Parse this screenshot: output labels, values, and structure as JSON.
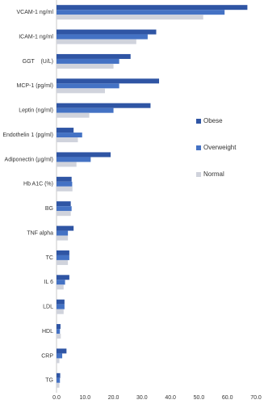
{
  "chart_data": {
    "type": "bar",
    "orientation": "horizontal",
    "categories": [
      "VCAM-1 ng/ml",
      "ICAM-1 ng/ml",
      "GGT    (U/L)",
      "MCP-1 (pg/ml)",
      "Leptin (ng/ml)",
      "Endothelin 1 (pg/ml)",
      "Adiponectin (µg/ml)",
      "Hb A1C (%)",
      "BG",
      "TNF alpha",
      "TC",
      "IL 6",
      "LDL",
      "HDL",
      "CRP",
      "TG"
    ],
    "series": [
      {
        "name": "Obese",
        "color": "#2f55a4",
        "values": [
          67,
          35,
          26,
          36,
          33,
          6,
          19,
          5.3,
          5,
          6,
          4.5,
          4.5,
          2.8,
          1.4,
          3.5,
          1.3
        ]
      },
      {
        "name": "Overweight",
        "color": "#4472c4",
        "values": [
          59,
          32,
          22,
          22,
          20,
          9,
          12,
          5.5,
          5.3,
          4,
          4.5,
          3,
          2.8,
          1.2,
          2,
          1.2
        ]
      },
      {
        "name": "Normal",
        "color": "#d0d3dc",
        "values": [
          51.5,
          28,
          20,
          17,
          11.5,
          7.5,
          7,
          5.6,
          5,
          4,
          4,
          2.5,
          2.5,
          1.5,
          1,
          1
        ]
      }
    ],
    "xlim": [
      0,
      70
    ],
    "xticks": [
      {
        "value": 0,
        "label": "0.0"
      },
      {
        "value": 10,
        "label": "10.0"
      },
      {
        "value": 20,
        "label": "20.0"
      },
      {
        "value": 30,
        "label": "30.0"
      },
      {
        "value": 40,
        "label": "40.0"
      },
      {
        "value": 50,
        "label": "50.0"
      },
      {
        "value": 60,
        "label": "60.0"
      },
      {
        "value": 70,
        "label": "70.0"
      }
    ],
    "legend": "right"
  }
}
